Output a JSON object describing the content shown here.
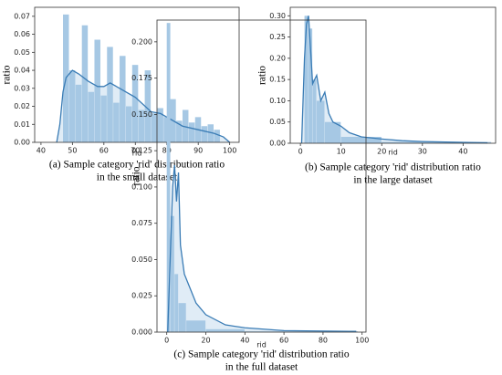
{
  "chart_data": [
    {
      "type": "histogram",
      "x_label": "rid",
      "y_label": "ratio",
      "caption": [
        "(a) Sample category 'rid' distribution ratio",
        "in the small dataset"
      ],
      "bar_color": "#a6c8e4",
      "line_color": "#3a7cb5",
      "bins": [
        47,
        49,
        51,
        53,
        55,
        57,
        59,
        61,
        63,
        65,
        67,
        69,
        71,
        73,
        75,
        77,
        79,
        81,
        83,
        85,
        87,
        89,
        91,
        93,
        95,
        97
      ],
      "values": [
        0.071,
        0.04,
        0.032,
        0.065,
        0.028,
        0.057,
        0.026,
        0.053,
        0.022,
        0.048,
        0.02,
        0.043,
        0.018,
        0.04,
        0.016,
        0.019,
        0.014,
        0.024,
        0.012,
        0.018,
        0.011,
        0.014,
        0.009,
        0.01,
        0.007
      ],
      "line": {
        "x": [
          45,
          46,
          47,
          48,
          50,
          52,
          55,
          58,
          60,
          62,
          65,
          70,
          75,
          78,
          80,
          85,
          90,
          95,
          98,
          100
        ],
        "values": [
          0,
          0.01,
          0.028,
          0.036,
          0.04,
          0.038,
          0.034,
          0.031,
          0.031,
          0.033,
          0.03,
          0.025,
          0.017,
          0.016,
          0.014,
          0.009,
          0.007,
          0.005,
          0.003,
          0
        ]
      },
      "xlim": [
        38,
        103
      ],
      "xticks": [
        40,
        50,
        60,
        70,
        80,
        90,
        100
      ],
      "ylim": [
        0,
        0.075
      ],
      "yticks": [
        {
          "value": 0,
          "label": "0.00"
        },
        {
          "value": 0.01,
          "label": "0.01"
        },
        {
          "value": 0.02,
          "label": "0.02"
        },
        {
          "value": 0.03,
          "label": "0.03"
        },
        {
          "value": 0.04,
          "label": "0.04"
        },
        {
          "value": 0.05,
          "label": "0.05"
        },
        {
          "value": 0.06,
          "label": "0.06"
        },
        {
          "value": 0.07,
          "label": "0.07"
        }
      ]
    },
    {
      "type": "histogram",
      "x_label": "rid",
      "y_label": "ratio",
      "caption": [
        "(b) Sample category 'rid' distribution ratio",
        "in the large dataset"
      ],
      "bar_color": "#a6c8e4",
      "line_color": "#3a7cb5",
      "bins": [
        1,
        2,
        3,
        4,
        6,
        10,
        20,
        47
      ],
      "values": [
        0.3,
        0.27,
        0.15,
        0.1,
        0.05,
        0.015,
        0.003
      ],
      "line": {
        "x": [
          0.3,
          1,
          1.5,
          2,
          2.5,
          3,
          4,
          5,
          6,
          7,
          8,
          10,
          12,
          15,
          20,
          25,
          30,
          40,
          46
        ],
        "values": [
          0,
          0.2,
          0.28,
          0.3,
          0.22,
          0.14,
          0.16,
          0.1,
          0.12,
          0.07,
          0.05,
          0.04,
          0.025,
          0.015,
          0.01,
          0.006,
          0.004,
          0.002,
          0.001
        ]
      },
      "xlim": [
        -2.5,
        48
      ],
      "xticks": [
        0,
        10,
        20,
        30,
        40
      ],
      "ylim": [
        0,
        0.32
      ],
      "yticks": [
        {
          "value": 0,
          "label": "0.00"
        },
        {
          "value": 0.05,
          "label": "0.05"
        },
        {
          "value": 0.1,
          "label": "0.10"
        },
        {
          "value": 0.15,
          "label": "0.15"
        },
        {
          "value": 0.2,
          "label": "0.20"
        },
        {
          "value": 0.25,
          "label": "0.25"
        },
        {
          "value": 0.3,
          "label": "0.30"
        }
      ]
    },
    {
      "type": "histogram",
      "x_label": "rid",
      "y_label": "ratio",
      "caption": [
        "(c) Sample category 'rid' distribution ratio",
        "in the full dataset"
      ],
      "bar_color": "#a6c8e4",
      "line_color": "#3a7cb5",
      "bins": [
        0,
        2,
        4,
        6,
        10,
        20,
        40,
        98
      ],
      "values": [
        0.213,
        0.08,
        0.04,
        0.02,
        0.008,
        0.002,
        0.0005
      ],
      "line": {
        "x": [
          0.5,
          2,
          3,
          4,
          5,
          6,
          7,
          9,
          12,
          15,
          20,
          30,
          40,
          60,
          97
        ],
        "values": [
          0,
          0.06,
          0.1,
          0.115,
          0.09,
          0.11,
          0.06,
          0.04,
          0.03,
          0.02,
          0.012,
          0.005,
          0.003,
          0.001,
          0.0005
        ]
      },
      "xlim": [
        -5,
        102
      ],
      "xticks": [
        0,
        20,
        40,
        60,
        80,
        100
      ],
      "ylim": [
        0,
        0.215
      ],
      "yticks": [
        {
          "value": 0,
          "label": "0.000"
        },
        {
          "value": 0.025,
          "label": "0.025"
        },
        {
          "value": 0.05,
          "label": "0.050"
        },
        {
          "value": 0.075,
          "label": "0.075"
        },
        {
          "value": 0.1,
          "label": "0.100"
        },
        {
          "value": 0.125,
          "label": "0.125"
        },
        {
          "value": 0.15,
          "label": "0.150"
        },
        {
          "value": 0.175,
          "label": "0.175"
        },
        {
          "value": 0.2,
          "label": "0.200"
        }
      ]
    }
  ]
}
